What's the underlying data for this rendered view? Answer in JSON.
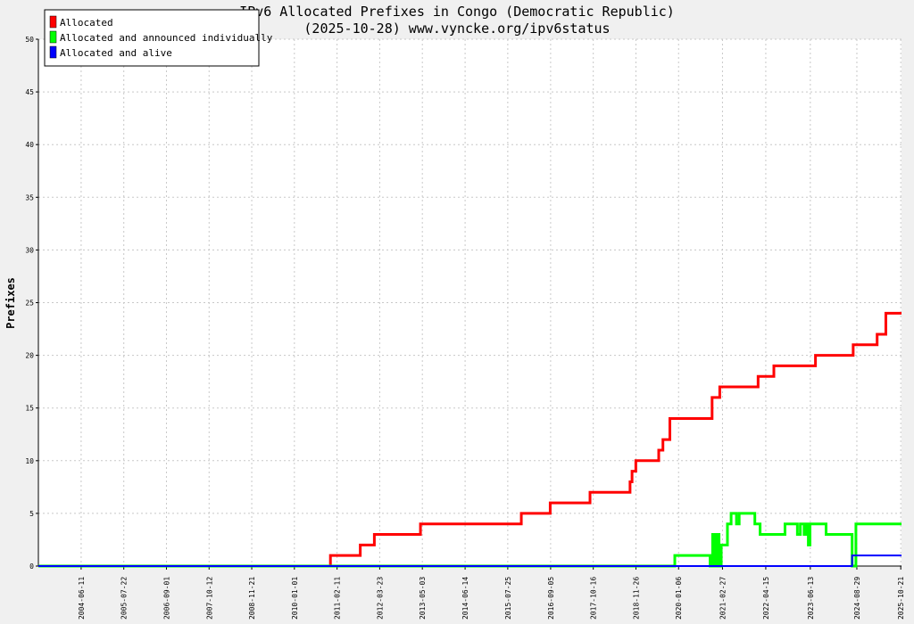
{
  "chart_data": {
    "type": "line",
    "title": "IPv6 Allocated Prefixes in Congo (Democratic Republic)",
    "subtitle": "(2025-10-28) www.vyncke.org/ipv6status",
    "ylabel": "Prefixes",
    "xlabel": "",
    "ylim": [
      0,
      50
    ],
    "yticks": [
      0,
      5,
      10,
      15,
      20,
      25,
      30,
      35,
      40,
      45,
      50
    ],
    "xlim": [
      "2003-05-01",
      "2025-10-28"
    ],
    "xticks": [
      "2004-06-11",
      "2005-07-22",
      "2006-09-01",
      "2007-10-12",
      "2008-11-21",
      "2010-01-01",
      "2011-02-11",
      "2012-03-23",
      "2013-05-03",
      "2014-06-14",
      "2015-07-25",
      "2016-09-05",
      "2017-10-16",
      "2018-11-26",
      "2020-01-06",
      "2021-02-27",
      "2022-04-15",
      "2023-06-13",
      "2024-08-29",
      "2025-10-21"
    ],
    "grid": true,
    "legend_position": "top-left",
    "series": [
      {
        "name": "Allocated",
        "color": "#ff0000",
        "points": [
          [
            "2003-05-01",
            0
          ],
          [
            "2010-12-10",
            0
          ],
          [
            "2010-12-10",
            1
          ],
          [
            "2011-09-20",
            1
          ],
          [
            "2011-09-20",
            2
          ],
          [
            "2012-02-01",
            2
          ],
          [
            "2012-02-01",
            3
          ],
          [
            "2013-04-15",
            3
          ],
          [
            "2013-04-15",
            4
          ],
          [
            "2015-12-01",
            4
          ],
          [
            "2015-12-01",
            5
          ],
          [
            "2016-09-01",
            5
          ],
          [
            "2016-09-01",
            6
          ],
          [
            "2017-09-15",
            6
          ],
          [
            "2017-09-15",
            7
          ],
          [
            "2018-10-01",
            7
          ],
          [
            "2018-10-01",
            8
          ],
          [
            "2018-10-20",
            8
          ],
          [
            "2018-10-20",
            9
          ],
          [
            "2018-11-25",
            9
          ],
          [
            "2018-11-25",
            10
          ],
          [
            "2019-07-01",
            10
          ],
          [
            "2019-07-01",
            11
          ],
          [
            "2019-08-10",
            11
          ],
          [
            "2019-08-10",
            12
          ],
          [
            "2019-10-15",
            12
          ],
          [
            "2019-10-15",
            14
          ],
          [
            "2020-11-20",
            14
          ],
          [
            "2020-11-20",
            16
          ],
          [
            "2021-02-01",
            16
          ],
          [
            "2021-02-01",
            17
          ],
          [
            "2022-02-01",
            17
          ],
          [
            "2022-02-01",
            18
          ],
          [
            "2022-07-01",
            18
          ],
          [
            "2022-07-01",
            19
          ],
          [
            "2023-08-01",
            19
          ],
          [
            "2023-08-01",
            20
          ],
          [
            "2024-07-25",
            20
          ],
          [
            "2024-07-25",
            21
          ],
          [
            "2025-03-10",
            21
          ],
          [
            "2025-03-10",
            22
          ],
          [
            "2025-06-01",
            22
          ],
          [
            "2025-06-01",
            24
          ],
          [
            "2025-10-28",
            24
          ]
        ]
      },
      {
        "name": "Allocated and announced individually",
        "color": "#00ff00",
        "points": [
          [
            "2003-05-01",
            0
          ],
          [
            "2019-12-01",
            0
          ],
          [
            "2019-12-01",
            1
          ],
          [
            "2020-11-01",
            1
          ],
          [
            "2020-11-01",
            0
          ],
          [
            "2020-11-25",
            0
          ],
          [
            "2020-11-25",
            3
          ],
          [
            "2020-12-15",
            3
          ],
          [
            "2020-12-15",
            0
          ],
          [
            "2021-01-05",
            0
          ],
          [
            "2021-01-05",
            3
          ],
          [
            "2021-01-25",
            3
          ],
          [
            "2021-01-25",
            0
          ],
          [
            "2021-02-15",
            0
          ],
          [
            "2021-02-15",
            2
          ],
          [
            "2021-04-15",
            2
          ],
          [
            "2021-04-15",
            4
          ],
          [
            "2021-05-20",
            4
          ],
          [
            "2021-05-20",
            5
          ],
          [
            "2021-07-10",
            5
          ],
          [
            "2021-07-10",
            4
          ],
          [
            "2021-08-05",
            4
          ],
          [
            "2021-08-05",
            5
          ],
          [
            "2022-01-01",
            5
          ],
          [
            "2022-01-01",
            4
          ],
          [
            "2022-02-20",
            4
          ],
          [
            "2022-02-20",
            3
          ],
          [
            "2022-10-15",
            3
          ],
          [
            "2022-10-15",
            4
          ],
          [
            "2023-02-10",
            4
          ],
          [
            "2023-02-10",
            3
          ],
          [
            "2023-03-10",
            3
          ],
          [
            "2023-03-10",
            4
          ],
          [
            "2023-04-15",
            4
          ],
          [
            "2023-04-15",
            3
          ],
          [
            "2023-05-10",
            3
          ],
          [
            "2023-05-10",
            4
          ],
          [
            "2023-05-25",
            4
          ],
          [
            "2023-05-25",
            2
          ],
          [
            "2023-06-10",
            2
          ],
          [
            "2023-06-10",
            4
          ],
          [
            "2023-11-10",
            4
          ],
          [
            "2023-11-10",
            3
          ],
          [
            "2024-07-15",
            3
          ],
          [
            "2024-07-15",
            0
          ],
          [
            "2024-08-20",
            0
          ],
          [
            "2024-08-20",
            4
          ],
          [
            "2025-10-28",
            4
          ]
        ]
      },
      {
        "name": "Allocated and alive",
        "color": "#0000ff",
        "points": [
          [
            "2003-05-01",
            0
          ],
          [
            "2024-07-15",
            0
          ],
          [
            "2024-07-15",
            1
          ],
          [
            "2025-10-28",
            1
          ]
        ]
      }
    ]
  }
}
